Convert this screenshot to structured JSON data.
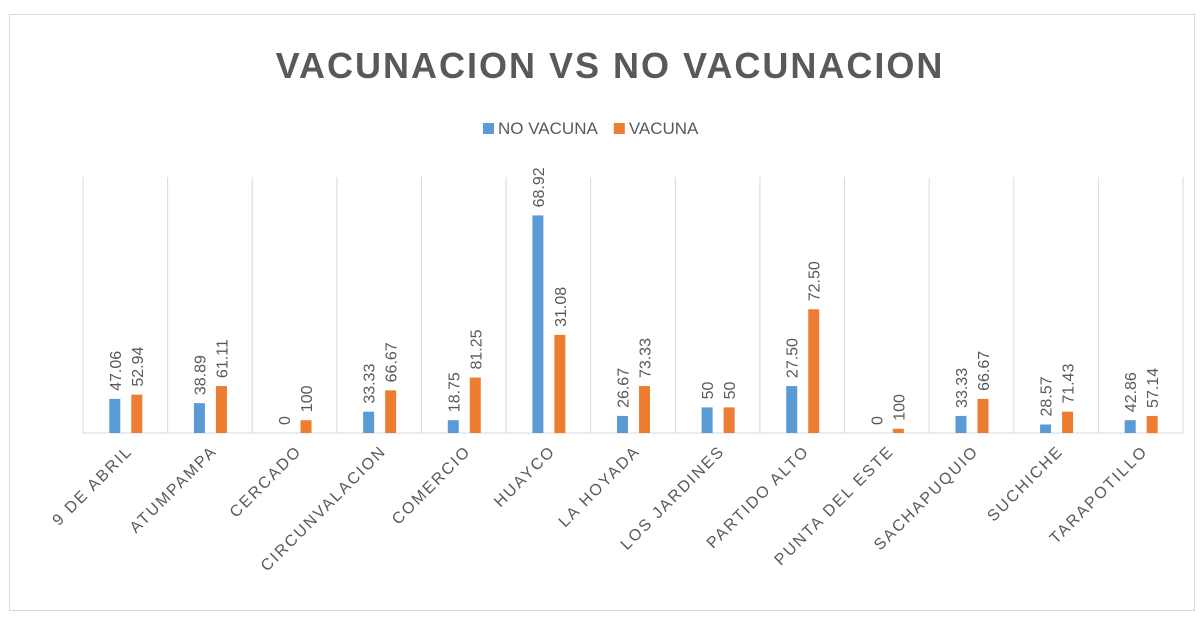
{
  "chart_data": {
    "type": "bar",
    "title": "VACUNACION VS NO VACUNACION",
    "categories": [
      "9 DE ABRIL",
      "ATUMPAMPA",
      "CERCADO",
      "CIRCUNVALACION",
      "COMERCIO",
      "HUAYCO",
      "LA HOYADA",
      "LOS JARDINES",
      "PARTIDO ALTO",
      "PUNTA DEL ESTE",
      "SACHAPUQUIO",
      "SUCHICHE",
      "TARAPOTILLO"
    ],
    "series": [
      {
        "name": "NO VACUNA",
        "color": "#5b9bd5",
        "values": [
          8,
          7,
          0,
          5,
          3,
          51,
          4,
          6,
          11,
          0,
          4,
          2,
          3
        ],
        "percent_labels": [
          "47.06",
          "38.89",
          "0",
          "33.33",
          "18.75",
          "68.92",
          "26.67",
          "50",
          "27.50",
          "0",
          "33.33",
          "28.57",
          "42.86"
        ]
      },
      {
        "name": "VACUNA",
        "color": "#ed7d31",
        "values": [
          9,
          11,
          3,
          10,
          13,
          23,
          11,
          6,
          29,
          1,
          8,
          5,
          4
        ],
        "percent_labels": [
          "52.94",
          "61.11",
          "100",
          "66.67",
          "81.25",
          "31.08",
          "73.33",
          "50",
          "72.50",
          "100",
          "66.67",
          "71.43",
          "57.14"
        ]
      }
    ],
    "ylim": [
      0,
      60
    ],
    "grid": true,
    "legend": "top"
  }
}
